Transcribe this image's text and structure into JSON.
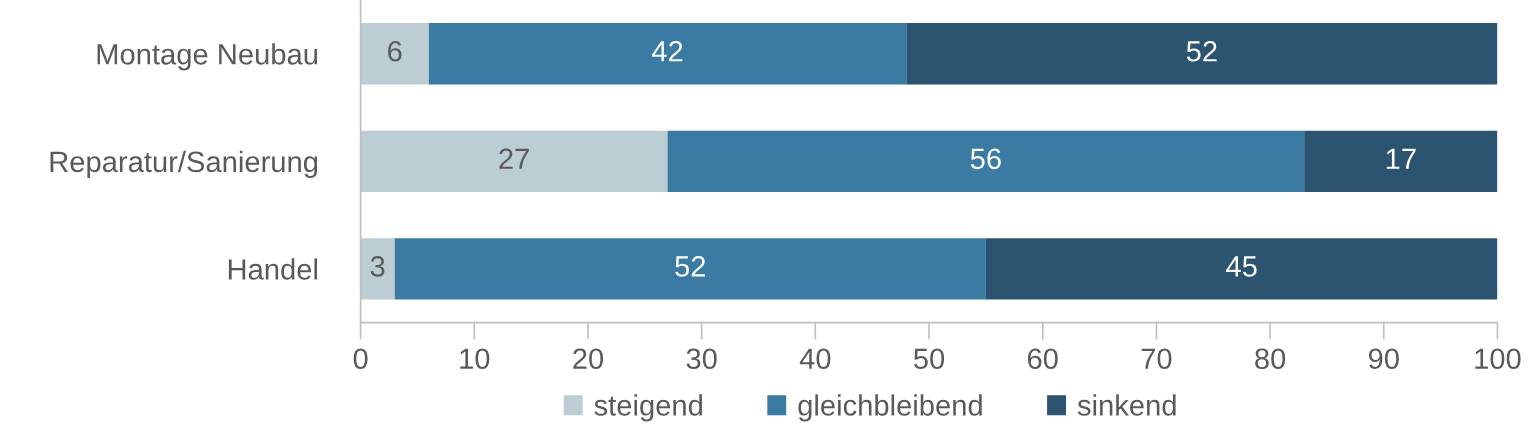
{
  "chart_data": {
    "type": "bar",
    "orientation": "horizontal",
    "stacked": true,
    "categories": [
      "Montage Neubau",
      "Reparatur/Sanierung",
      "Handel"
    ],
    "series": [
      {
        "name": "steigend",
        "color": "#bccdd3",
        "values": [
          6,
          27,
          3
        ]
      },
      {
        "name": "gleichbleibend",
        "color": "#3b7ba3",
        "values": [
          42,
          56,
          52
        ]
      },
      {
        "name": "sinkend",
        "color": "#2c5470",
        "values": [
          52,
          17,
          45
        ]
      }
    ],
    "xlim": [
      0,
      100
    ],
    "xticks": [
      0,
      10,
      20,
      30,
      40,
      50,
      60,
      70,
      80,
      90,
      100
    ],
    "data_labels": true,
    "legend": "bottom",
    "grid": false
  }
}
